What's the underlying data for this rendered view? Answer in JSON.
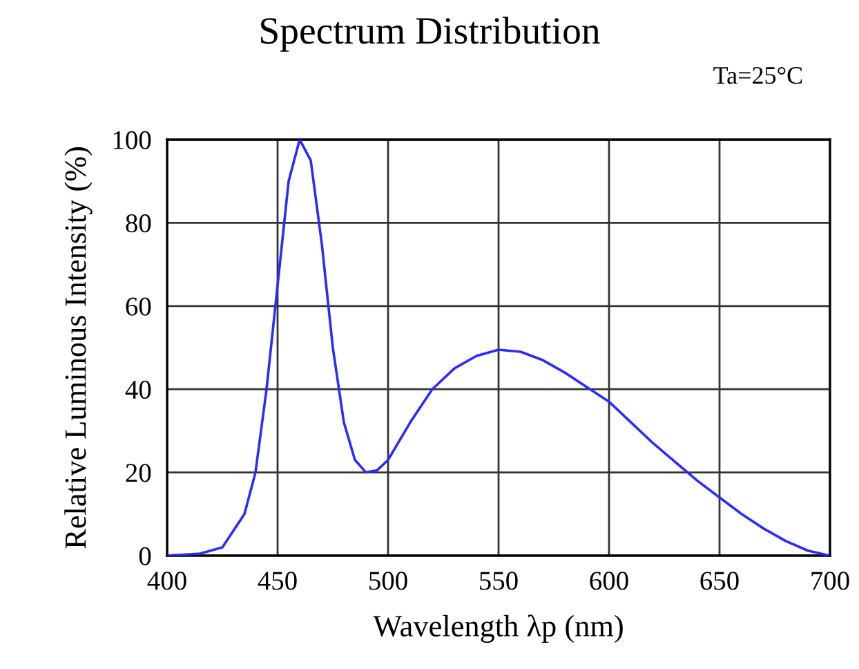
{
  "chart_data": {
    "type": "line",
    "title": "Spectrum Distribution",
    "annotations": [
      "Ta=25°C"
    ],
    "xlabel": "Wavelength λp (nm)",
    "ylabel": "Relative Luminous Intensity (%)",
    "series": [
      {
        "color": "#2b2bff",
        "x": [
          400,
          415,
          425,
          435,
          440,
          445,
          450,
          455,
          460,
          465,
          470,
          475,
          480,
          485,
          490,
          495,
          500,
          510,
          520,
          530,
          540,
          550,
          560,
          570,
          580,
          590,
          600,
          610,
          620,
          630,
          640,
          650,
          660,
          670,
          680,
          690,
          700
        ],
        "values": [
          0,
          0.5,
          2,
          10,
          20,
          40,
          65,
          90,
          100,
          95,
          75,
          50,
          32,
          23,
          20,
          20.5,
          23,
          32,
          40,
          45,
          48,
          49.5,
          49,
          47,
          44,
          40.5,
          37,
          32,
          27,
          22.5,
          18,
          14,
          10,
          6.5,
          3.5,
          1.2,
          0
        ]
      }
    ],
    "xlim": [
      400,
      700
    ],
    "ylim": [
      0,
      100
    ],
    "xticks": [
      400,
      450,
      500,
      550,
      600,
      650,
      700
    ],
    "yticks": [
      0,
      20,
      40,
      60,
      80,
      100
    ],
    "grid": true,
    "marker": "none",
    "line_style": "solid"
  }
}
